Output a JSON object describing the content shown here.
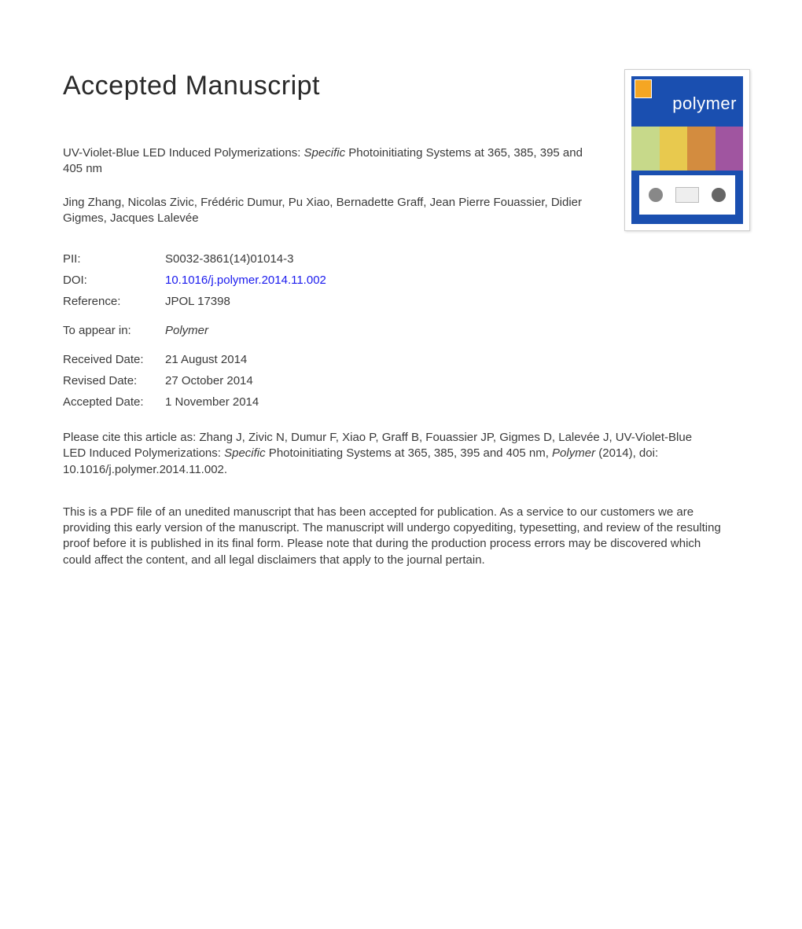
{
  "heading": "Accepted Manuscript",
  "title_pre": "UV-Violet-Blue LED Induced Polymerizations: ",
  "title_italic": "Specific",
  "title_post": " Photoinitiating Systems at 365, 385, 395 and 405 nm",
  "authors": "Jing Zhang, Nicolas Zivic, Frédéric Dumur, Pu Xiao, Bernadette Graff, Jean Pierre Fouassier, Didier Gigmes, Jacques Lalevée",
  "meta": {
    "pii_label": "PII:",
    "pii_value": "S0032-3861(14)01014-3",
    "doi_label": "DOI:",
    "doi_value": "10.1016/j.polymer.2014.11.002",
    "ref_label": "Reference:",
    "ref_value": "JPOL 17398",
    "appear_label": "To appear in:",
    "appear_value": "Polymer",
    "received_label": "Received Date:",
    "received_value": "21 August 2014",
    "revised_label": "Revised Date:",
    "revised_value": "27 October 2014",
    "accepted_label": "Accepted Date:",
    "accepted_value": "1 November 2014"
  },
  "citation_pre": "Please cite this article as: Zhang J, Zivic N, Dumur F, Xiao P, Graff B, Fouassier JP, Gigmes D, Lalevée J, UV-Violet-Blue LED Induced Polymerizations: ",
  "citation_italic1": "Specific",
  "citation_mid": " Photoinitiating Systems at 365, 385, 395 and 405 nm, ",
  "citation_italic2": "Polymer",
  "citation_post": " (2014), doi: 10.1016/j.polymer.2014.11.002.",
  "disclaimer": "This is a PDF file of an unedited manuscript that has been accepted for publication. As a service to our customers we are providing this early version of the manuscript. The manuscript will undergo copyediting, typesetting, and review of the resulting proof before it is published in its final form. Please note that during the production process errors may be discovered which could affect the content, and all legal disclaimers that apply to the journal pertain.",
  "cover": {
    "journal": "polymer",
    "background": "#1a4fb0",
    "band_colors": [
      "#c7d98a",
      "#e8c94e",
      "#d38c3f",
      "#a055a0"
    ]
  }
}
